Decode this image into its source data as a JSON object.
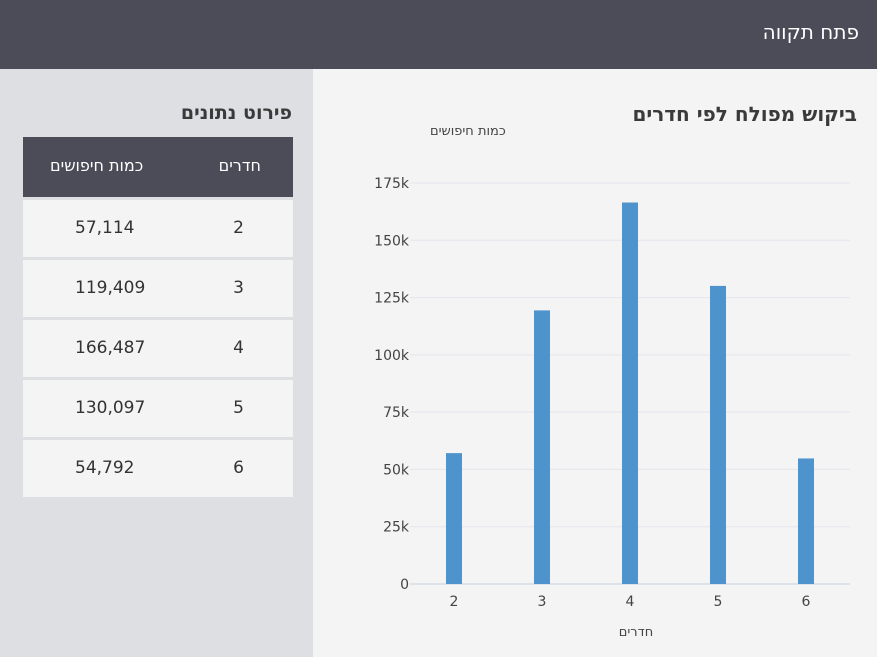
{
  "header": {
    "city": "פתח תקווה"
  },
  "table": {
    "title": "פירוט נתונים",
    "columns": {
      "rooms": "חדרים",
      "count": "כמות חיפושים"
    },
    "rows": [
      {
        "rooms": "2",
        "count": "57,114"
      },
      {
        "rooms": "3",
        "count": "119,409"
      },
      {
        "rooms": "4",
        "count": "166,487"
      },
      {
        "rooms": "5",
        "count": "130,097"
      },
      {
        "rooms": "6",
        "count": "54,792"
      }
    ]
  },
  "colors": {
    "bar": "#4f93cd",
    "grid": "#e3e6ee",
    "header_bg": "#4b4c57"
  },
  "chart_data": {
    "type": "bar",
    "title": "ביקוש מפולח לפי חדרים",
    "xlabel": "חדרים",
    "ylabel": "כמות חיפושים",
    "categories": [
      "2",
      "3",
      "4",
      "5",
      "6"
    ],
    "values": [
      57114,
      119409,
      166487,
      130097,
      54792
    ],
    "ylim": [
      0,
      175000
    ],
    "yticks": [
      0,
      25000,
      50000,
      75000,
      100000,
      125000,
      150000,
      175000
    ],
    "ytick_labels": [
      "0",
      "25k",
      "50k",
      "75k",
      "100k",
      "125k",
      "150k",
      "175k"
    ],
    "grid": true,
    "legend": "none"
  }
}
